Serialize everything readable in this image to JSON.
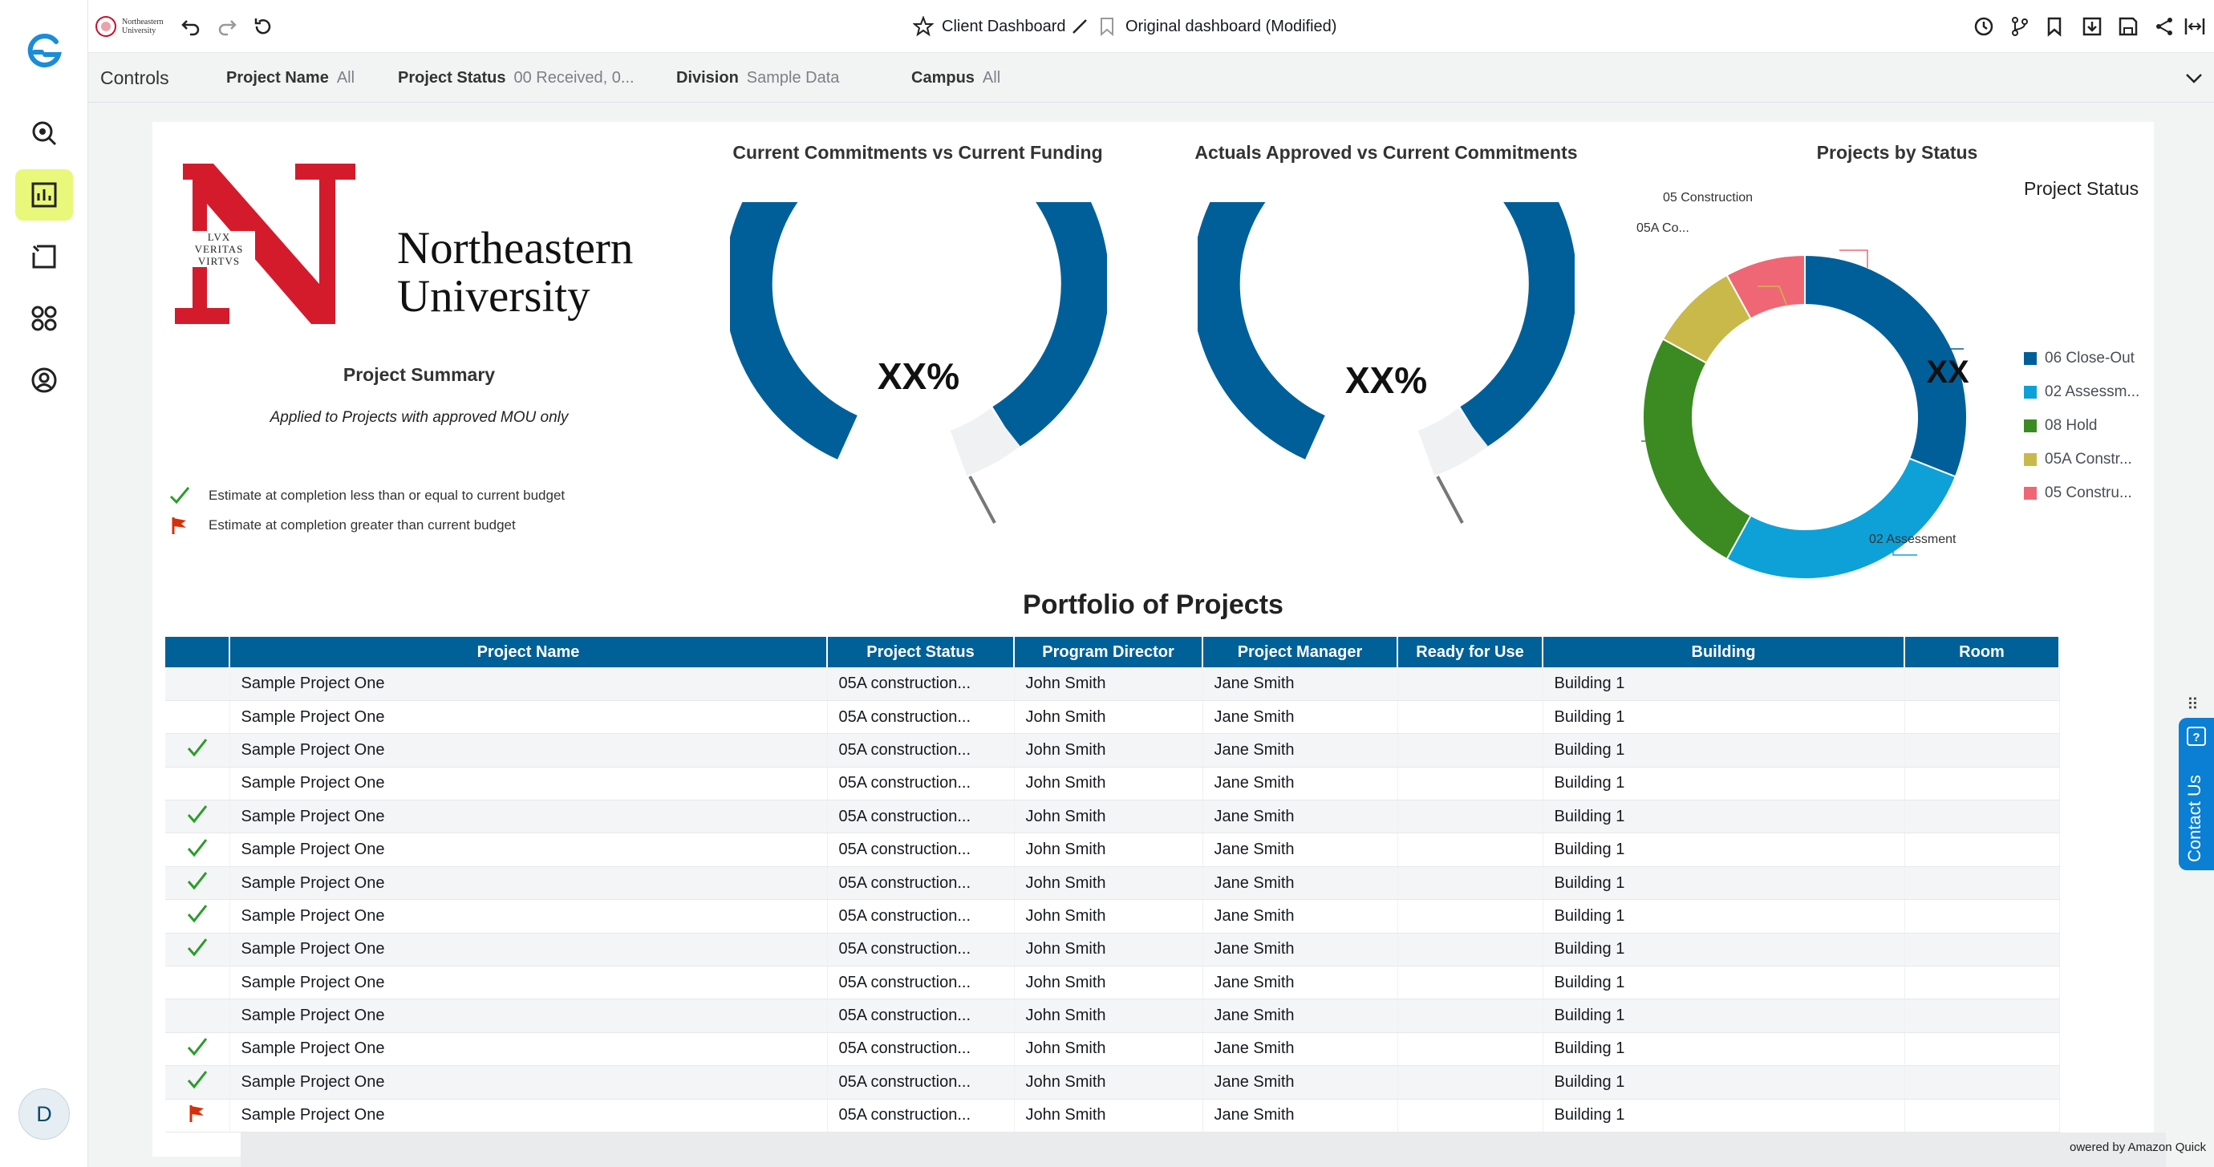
{
  "topbar": {
    "client_dashboard": "Client Dashboard",
    "original_dashboard": "Original dashboard (Modified)",
    "logo_text_1": "Northeastern",
    "logo_text_2": "University"
  },
  "sidebar": {
    "avatar_initial": "D",
    "items": [
      "search-icon",
      "dashboard-icon",
      "stories-icon",
      "apps-icon",
      "profile-icon"
    ]
  },
  "controls": {
    "title": "Controls",
    "project_name_label": "Project Name",
    "project_name_value": "All",
    "project_status_label": "Project Status",
    "project_status_value": "00 Received, 0...",
    "division_label": "Division",
    "division_value": "Sample Data",
    "campus_label": "Campus",
    "campus_value": "All"
  },
  "branding": {
    "name_line1": "Northeastern",
    "name_line2": "University",
    "seal_line1": "LVX",
    "seal_line2": "VERITAS",
    "seal_line3": "VIRTVS"
  },
  "summary": {
    "title": "Project Summary",
    "subtitle": "Applied to Projects with approved MOU only",
    "legend_check": "Estimate at completion less than or equal to current budget",
    "legend_flag": "Estimate at completion greater than current budget"
  },
  "gauges": [
    {
      "title": "Current Commitments vs Current Funding",
      "center": "XX%"
    },
    {
      "title": "Actuals Approved vs Current Commitments",
      "center": "XX%"
    }
  ],
  "status_chart": {
    "title": "Projects by Status",
    "center": "XX",
    "legend_title": "Project Status",
    "legend": [
      {
        "label": "06 Close-Out",
        "color": "#005f99"
      },
      {
        "label": "02 Assessm...",
        "color": "#0ea1d8"
      },
      {
        "label": "08 Hold",
        "color": "#3b8b22"
      },
      {
        "label": "05A Constr...",
        "color": "#c9b94a"
      },
      {
        "label": "05 Constru...",
        "color": "#ef6775"
      }
    ],
    "callouts": {
      "construction": "05 Construction",
      "co": "05A Co...",
      "assessment": "02 Assessment"
    }
  },
  "chart_data": {
    "type": "pie",
    "title": "Projects by Status",
    "categories": [
      "06 Close-Out",
      "02 Assessment",
      "08 Hold",
      "05A Construction",
      "05 Construction"
    ],
    "values": [
      31,
      27,
      25,
      9,
      8
    ],
    "legend": "right"
  },
  "portfolio": {
    "title": "Portfolio of Projects",
    "columns": [
      "",
      "Project Name",
      "Project Status",
      "Program Director",
      "Project Manager",
      "Ready for Use",
      "Building",
      "Room"
    ],
    "rows": [
      {
        "icon": "",
        "name": "Sample Project One",
        "status": "05A construction...",
        "director": "John Smith",
        "manager": "Jane Smith",
        "ready": "",
        "building": "Building 1",
        "room": ""
      },
      {
        "icon": "",
        "name": "Sample Project One",
        "status": "05A construction...",
        "director": "John Smith",
        "manager": "Jane Smith",
        "ready": "",
        "building": "Building 1",
        "room": ""
      },
      {
        "icon": "check",
        "name": "Sample Project One",
        "status": "05A construction...",
        "director": "John Smith",
        "manager": "Jane Smith",
        "ready": "",
        "building": "Building 1",
        "room": ""
      },
      {
        "icon": "",
        "name": "Sample Project One",
        "status": "05A construction...",
        "director": "John Smith",
        "manager": "Jane Smith",
        "ready": "",
        "building": "Building 1",
        "room": ""
      },
      {
        "icon": "check",
        "name": "Sample Project One",
        "status": "05A construction...",
        "director": "John Smith",
        "manager": "Jane Smith",
        "ready": "",
        "building": "Building 1",
        "room": ""
      },
      {
        "icon": "check",
        "name": "Sample Project One",
        "status": "05A construction...",
        "director": "John Smith",
        "manager": "Jane Smith",
        "ready": "",
        "building": "Building 1",
        "room": ""
      },
      {
        "icon": "check",
        "name": "Sample Project One",
        "status": "05A construction...",
        "director": "John Smith",
        "manager": "Jane Smith",
        "ready": "",
        "building": "Building 1",
        "room": ""
      },
      {
        "icon": "check",
        "name": "Sample Project One",
        "status": "05A construction...",
        "director": "John Smith",
        "manager": "Jane Smith",
        "ready": "",
        "building": "Building 1",
        "room": ""
      },
      {
        "icon": "check",
        "name": "Sample Project One",
        "status": "05A construction...",
        "director": "John Smith",
        "manager": "Jane Smith",
        "ready": "",
        "building": "Building 1",
        "room": ""
      },
      {
        "icon": "",
        "name": "Sample Project One",
        "status": "05A construction...",
        "director": "John Smith",
        "manager": "Jane Smith",
        "ready": "",
        "building": "Building 1",
        "room": ""
      },
      {
        "icon": "",
        "name": "Sample Project One",
        "status": "05A construction...",
        "director": "John Smith",
        "manager": "Jane Smith",
        "ready": "",
        "building": "Building 1",
        "room": ""
      },
      {
        "icon": "check",
        "name": "Sample Project One",
        "status": "05A construction...",
        "director": "John Smith",
        "manager": "Jane Smith",
        "ready": "",
        "building": "Building 1",
        "room": ""
      },
      {
        "icon": "check",
        "name": "Sample Project One",
        "status": "05A construction...",
        "director": "John Smith",
        "manager": "Jane Smith",
        "ready": "",
        "building": "Building 1",
        "room": ""
      },
      {
        "icon": "flag",
        "name": "Sample Project One",
        "status": "05A construction...",
        "director": "John Smith",
        "manager": "Jane Smith",
        "ready": "",
        "building": "Building 1",
        "room": ""
      }
    ]
  },
  "contact": {
    "label": "Contact Us"
  },
  "footer": {
    "powered": "owered by Amazon Quick"
  },
  "colors": {
    "primary": "#006098",
    "accent": "#e9f77a",
    "red": "#d71e3a",
    "check": "#2a9d2a",
    "flag": "#d6300b"
  }
}
